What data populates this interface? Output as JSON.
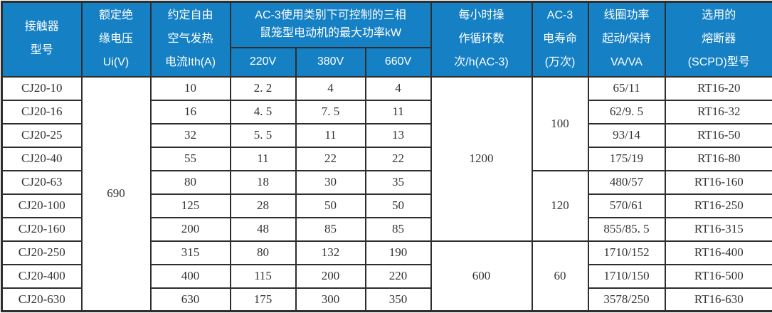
{
  "colors": {
    "header_background": "#1580c4",
    "header_text": "#ffffff",
    "body_text": "#333333",
    "border": "#2e2e2e",
    "page_background": "#ffffff"
  },
  "table": {
    "header_rows": [
      [
        {
          "text": "接触器\n型号",
          "name": "col-header-contactor-model",
          "rowspan": 2
        },
        {
          "text": "额定绝\n缘电压\nUi(V)",
          "name": "col-header-rated-insulation-voltage",
          "rowspan": 2
        },
        {
          "text": "约定自由\n空气发热\n电流Ith(A)",
          "name": "col-header-conventional-thermal-current",
          "rowspan": 2
        },
        {
          "text": "AC-3使用类别下可控制的三相\n鼠笼型电动机的最大功率kW",
          "name": "col-header-ac3-max-motor-power",
          "colspan": 3
        },
        {
          "text": "每小时操\n作循环数\n次/h(AC-3)",
          "name": "col-header-operating-cycles-per-hour",
          "rowspan": 2
        },
        {
          "text": "AC-3\n电寿命\n(万次)",
          "name": "col-header-ac3-electrical-life",
          "rowspan": 2
        },
        {
          "text": "线圈功率\n起动/保持\nVA/VA",
          "name": "col-header-coil-power-start-hold",
          "rowspan": 2
        },
        {
          "text": "选用的\n熔断器\n(SCPD)型号",
          "name": "col-header-fuse-scpd-model",
          "rowspan": 2
        }
      ],
      [
        {
          "text": "220V",
          "name": "col-header-220v"
        },
        {
          "text": "380V",
          "name": "col-header-380v"
        },
        {
          "text": "660V",
          "name": "col-header-660v"
        }
      ]
    ],
    "body_rows": [
      [
        {
          "text": "CJ20-10"
        },
        {
          "text": "690",
          "rowspan": 10
        },
        {
          "text": "10"
        },
        {
          "text": "2. 2"
        },
        {
          "text": "4"
        },
        {
          "text": "4"
        },
        {
          "text": "1200",
          "rowspan": 7
        },
        {
          "text": "100",
          "rowspan": 4
        },
        {
          "text": "65/11"
        },
        {
          "text": "RT16-20"
        }
      ],
      [
        {
          "text": "CJ20-16"
        },
        {
          "text": "16"
        },
        {
          "text": "4. 5"
        },
        {
          "text": "7. 5"
        },
        {
          "text": "11"
        },
        {
          "text": "62/9. 5"
        },
        {
          "text": "RT16-32"
        }
      ],
      [
        {
          "text": "CJ20-25"
        },
        {
          "text": "32"
        },
        {
          "text": "5. 5"
        },
        {
          "text": "11"
        },
        {
          "text": "13"
        },
        {
          "text": "93/14"
        },
        {
          "text": "RT16-50"
        }
      ],
      [
        {
          "text": "CJ20-40"
        },
        {
          "text": "55"
        },
        {
          "text": "11"
        },
        {
          "text": "22"
        },
        {
          "text": "22"
        },
        {
          "text": "175/19"
        },
        {
          "text": "RT16-80"
        }
      ],
      [
        {
          "text": "CJ20-63"
        },
        {
          "text": "80"
        },
        {
          "text": "18"
        },
        {
          "text": "30"
        },
        {
          "text": "35"
        },
        {
          "text": "120",
          "rowspan": 3
        },
        {
          "text": "480/57"
        },
        {
          "text": "RT16-160"
        }
      ],
      [
        {
          "text": "CJ20-100"
        },
        {
          "text": "125"
        },
        {
          "text": "28"
        },
        {
          "text": "50"
        },
        {
          "text": "50"
        },
        {
          "text": "570/61"
        },
        {
          "text": "RT16-250"
        }
      ],
      [
        {
          "text": "CJ20-160"
        },
        {
          "text": "200"
        },
        {
          "text": "48"
        },
        {
          "text": "85"
        },
        {
          "text": "85"
        },
        {
          "text": "855/85. 5"
        },
        {
          "text": "RT16-315"
        }
      ],
      [
        {
          "text": "CJ20-250"
        },
        {
          "text": "315"
        },
        {
          "text": "80"
        },
        {
          "text": "132"
        },
        {
          "text": "190"
        },
        {
          "text": "600",
          "rowspan": 3
        },
        {
          "text": "60",
          "rowspan": 3
        },
        {
          "text": "1710/152"
        },
        {
          "text": "RT16-400"
        }
      ],
      [
        {
          "text": "CJ20-400"
        },
        {
          "text": "400"
        },
        {
          "text": "115"
        },
        {
          "text": "200"
        },
        {
          "text": "220"
        },
        {
          "text": "1710/150"
        },
        {
          "text": "RT16-500"
        }
      ],
      [
        {
          "text": "CJ20-630"
        },
        {
          "text": "630"
        },
        {
          "text": "175"
        },
        {
          "text": "300"
        },
        {
          "text": "350"
        },
        {
          "text": "3578/250"
        },
        {
          "text": "RT16-630"
        }
      ]
    ]
  }
}
